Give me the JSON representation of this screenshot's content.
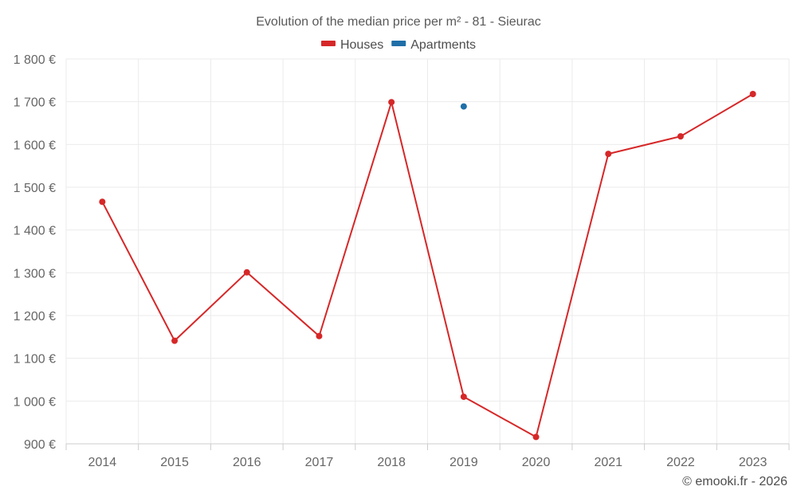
{
  "chart_data": {
    "type": "line",
    "title": "Evolution of the median price per m² - 81 - Sieurac",
    "categories": [
      "2014",
      "2015",
      "2016",
      "2017",
      "2018",
      "2019",
      "2020",
      "2021",
      "2022",
      "2023"
    ],
    "y_ticks": [
      900,
      1000,
      1100,
      1200,
      1300,
      1400,
      1500,
      1600,
      1700,
      1800
    ],
    "y_tick_labels": [
      "900 €",
      "1 000 €",
      "1 100 €",
      "1 200 €",
      "1 300 €",
      "1 400 €",
      "1 500 €",
      "1 600 €",
      "1 700 €",
      "1 800 €"
    ],
    "ylim": [
      900,
      1800
    ],
    "xlabel": "",
    "ylabel": "",
    "grid": true,
    "legend_position": "top-center",
    "series": [
      {
        "name": "Houses",
        "color": "#d62728",
        "values": [
          1466,
          1141,
          1301,
          1152,
          1699,
          1010,
          916,
          1578,
          1619,
          1718
        ]
      },
      {
        "name": "Apartments",
        "color": "#1f6fa8",
        "values": [
          null,
          null,
          null,
          null,
          null,
          1689,
          null,
          null,
          null,
          null
        ]
      }
    ],
    "credit": "© emooki.fr - 2026"
  }
}
